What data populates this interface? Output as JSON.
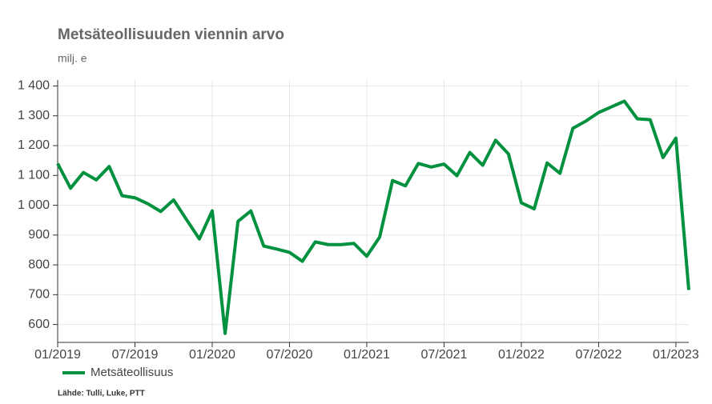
{
  "chart_data": {
    "type": "line",
    "title": "Metsäteollisuuden viennin arvo",
    "subtitle": "milj. e",
    "source": "Lähde: Tulli, Luke, PTT",
    "categories": [
      "01/2019",
      null,
      null,
      null,
      null,
      null,
      "07/2019",
      null,
      null,
      null,
      null,
      null,
      "01/2020",
      null,
      null,
      null,
      null,
      null,
      "07/2020",
      null,
      null,
      null,
      null,
      null,
      "01/2021",
      null,
      null,
      null,
      null,
      null,
      "07/2021",
      null,
      null,
      null,
      null,
      null,
      "01/2022",
      null,
      null,
      null,
      null,
      null,
      "07/2022",
      null,
      null,
      null,
      null,
      null,
      "01/2023",
      null
    ],
    "series": [
      {
        "name": "Metsäteollisuus",
        "color": "#00913f",
        "values": [
          1140,
          1057,
          1110,
          1085,
          1130,
          1032,
          1025,
          1005,
          979,
          1018,
          952,
          887,
          981,
          570,
          946,
          981,
          863,
          853,
          842,
          812,
          877,
          868,
          868,
          872,
          829,
          893,
          1083,
          1065,
          1140,
          1128,
          1138,
          1099,
          1177,
          1134,
          1218,
          1172,
          1008,
          988,
          1142,
          1107,
          1258,
          1282,
          1311,
          1330,
          1349,
          1290,
          1287,
          1160,
          1225,
          716
        ]
      }
    ],
    "ylim": [
      540,
      1420
    ],
    "yticks": [
      600,
      700,
      800,
      900,
      {
        "value": 1000,
        "label": "1 000"
      },
      {
        "value": 1100,
        "label": "1 100"
      },
      {
        "value": 1200,
        "label": "1 200"
      },
      {
        "value": 1300,
        "label": "1 300"
      },
      {
        "value": 1400,
        "label": "1 400"
      }
    ],
    "grid": true
  }
}
